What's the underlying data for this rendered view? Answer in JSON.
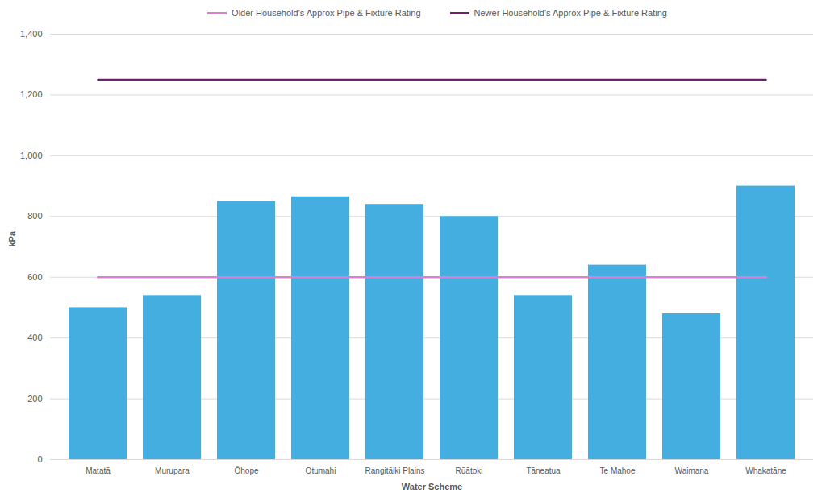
{
  "chart_data": {
    "type": "bar",
    "x_label": "Water Scheme",
    "y_label": "kPa",
    "categories": [
      "Matatā",
      "Murupara",
      "Ōhope",
      "Otumahi",
      "Rangitāiki Plains",
      "Rūātoki",
      "Tāneatua",
      "Te Mahoe",
      "Waimana",
      "Whakatāne"
    ],
    "values": [
      500,
      540,
      850,
      865,
      840,
      800,
      540,
      640,
      480,
      900
    ],
    "color": "#45aee0",
    "series": [
      {
        "name": "Older Household's Approx Pipe & Fixture Rating",
        "type": "line",
        "color": "#d980d4",
        "values": [
          600,
          600,
          600,
          600,
          600,
          600,
          600,
          600,
          600,
          600
        ]
      },
      {
        "name": "Newer Household's Approx Pipe & Fixture Rating",
        "type": "line",
        "color": "#6e226e",
        "values": [
          1250,
          1250,
          1250,
          1250,
          1250,
          1250,
          1250,
          1250,
          1250,
          1250
        ]
      }
    ],
    "ylim": [
      0,
      1400
    ],
    "yticks": [
      0,
      200,
      400,
      600,
      800,
      1000,
      1200,
      1400
    ],
    "grid": true,
    "legend": "top"
  }
}
